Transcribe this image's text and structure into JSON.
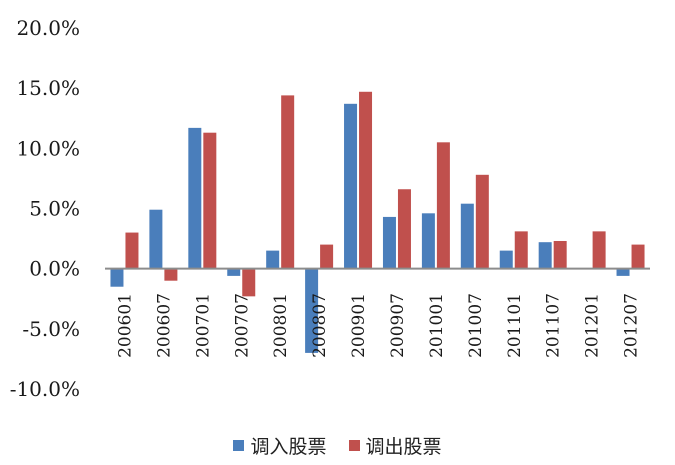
{
  "chart_data": {
    "type": "bar",
    "categories": [
      "200601",
      "200607",
      "200701",
      "200707",
      "200801",
      "200807",
      "200901",
      "200907",
      "201001",
      "201007",
      "201101",
      "201107",
      "201201",
      "201207"
    ],
    "series": [
      {
        "name": "调入股票",
        "color": "#4a7ebb",
        "values": [
          -1.5,
          4.9,
          11.7,
          -0.6,
          1.5,
          -7.0,
          13.7,
          4.3,
          4.6,
          5.4,
          1.5,
          2.2,
          0.0,
          -0.6
        ]
      },
      {
        "name": "调出股票",
        "color": "#c0504d",
        "values": [
          3.0,
          -1.0,
          11.3,
          -2.3,
          14.4,
          2.0,
          14.7,
          6.6,
          10.5,
          7.8,
          3.1,
          2.3,
          3.1,
          2.0
        ]
      }
    ],
    "ylim": [
      -10,
      20
    ],
    "yticks": [
      "20.0%",
      "15.0%",
      "10.0%",
      "5.0%",
      "0.0%",
      "-5.0%",
      "-10.0%"
    ],
    "title": "",
    "xlabel": "",
    "ylabel": "",
    "legend": "bottom-center",
    "grid": false
  }
}
